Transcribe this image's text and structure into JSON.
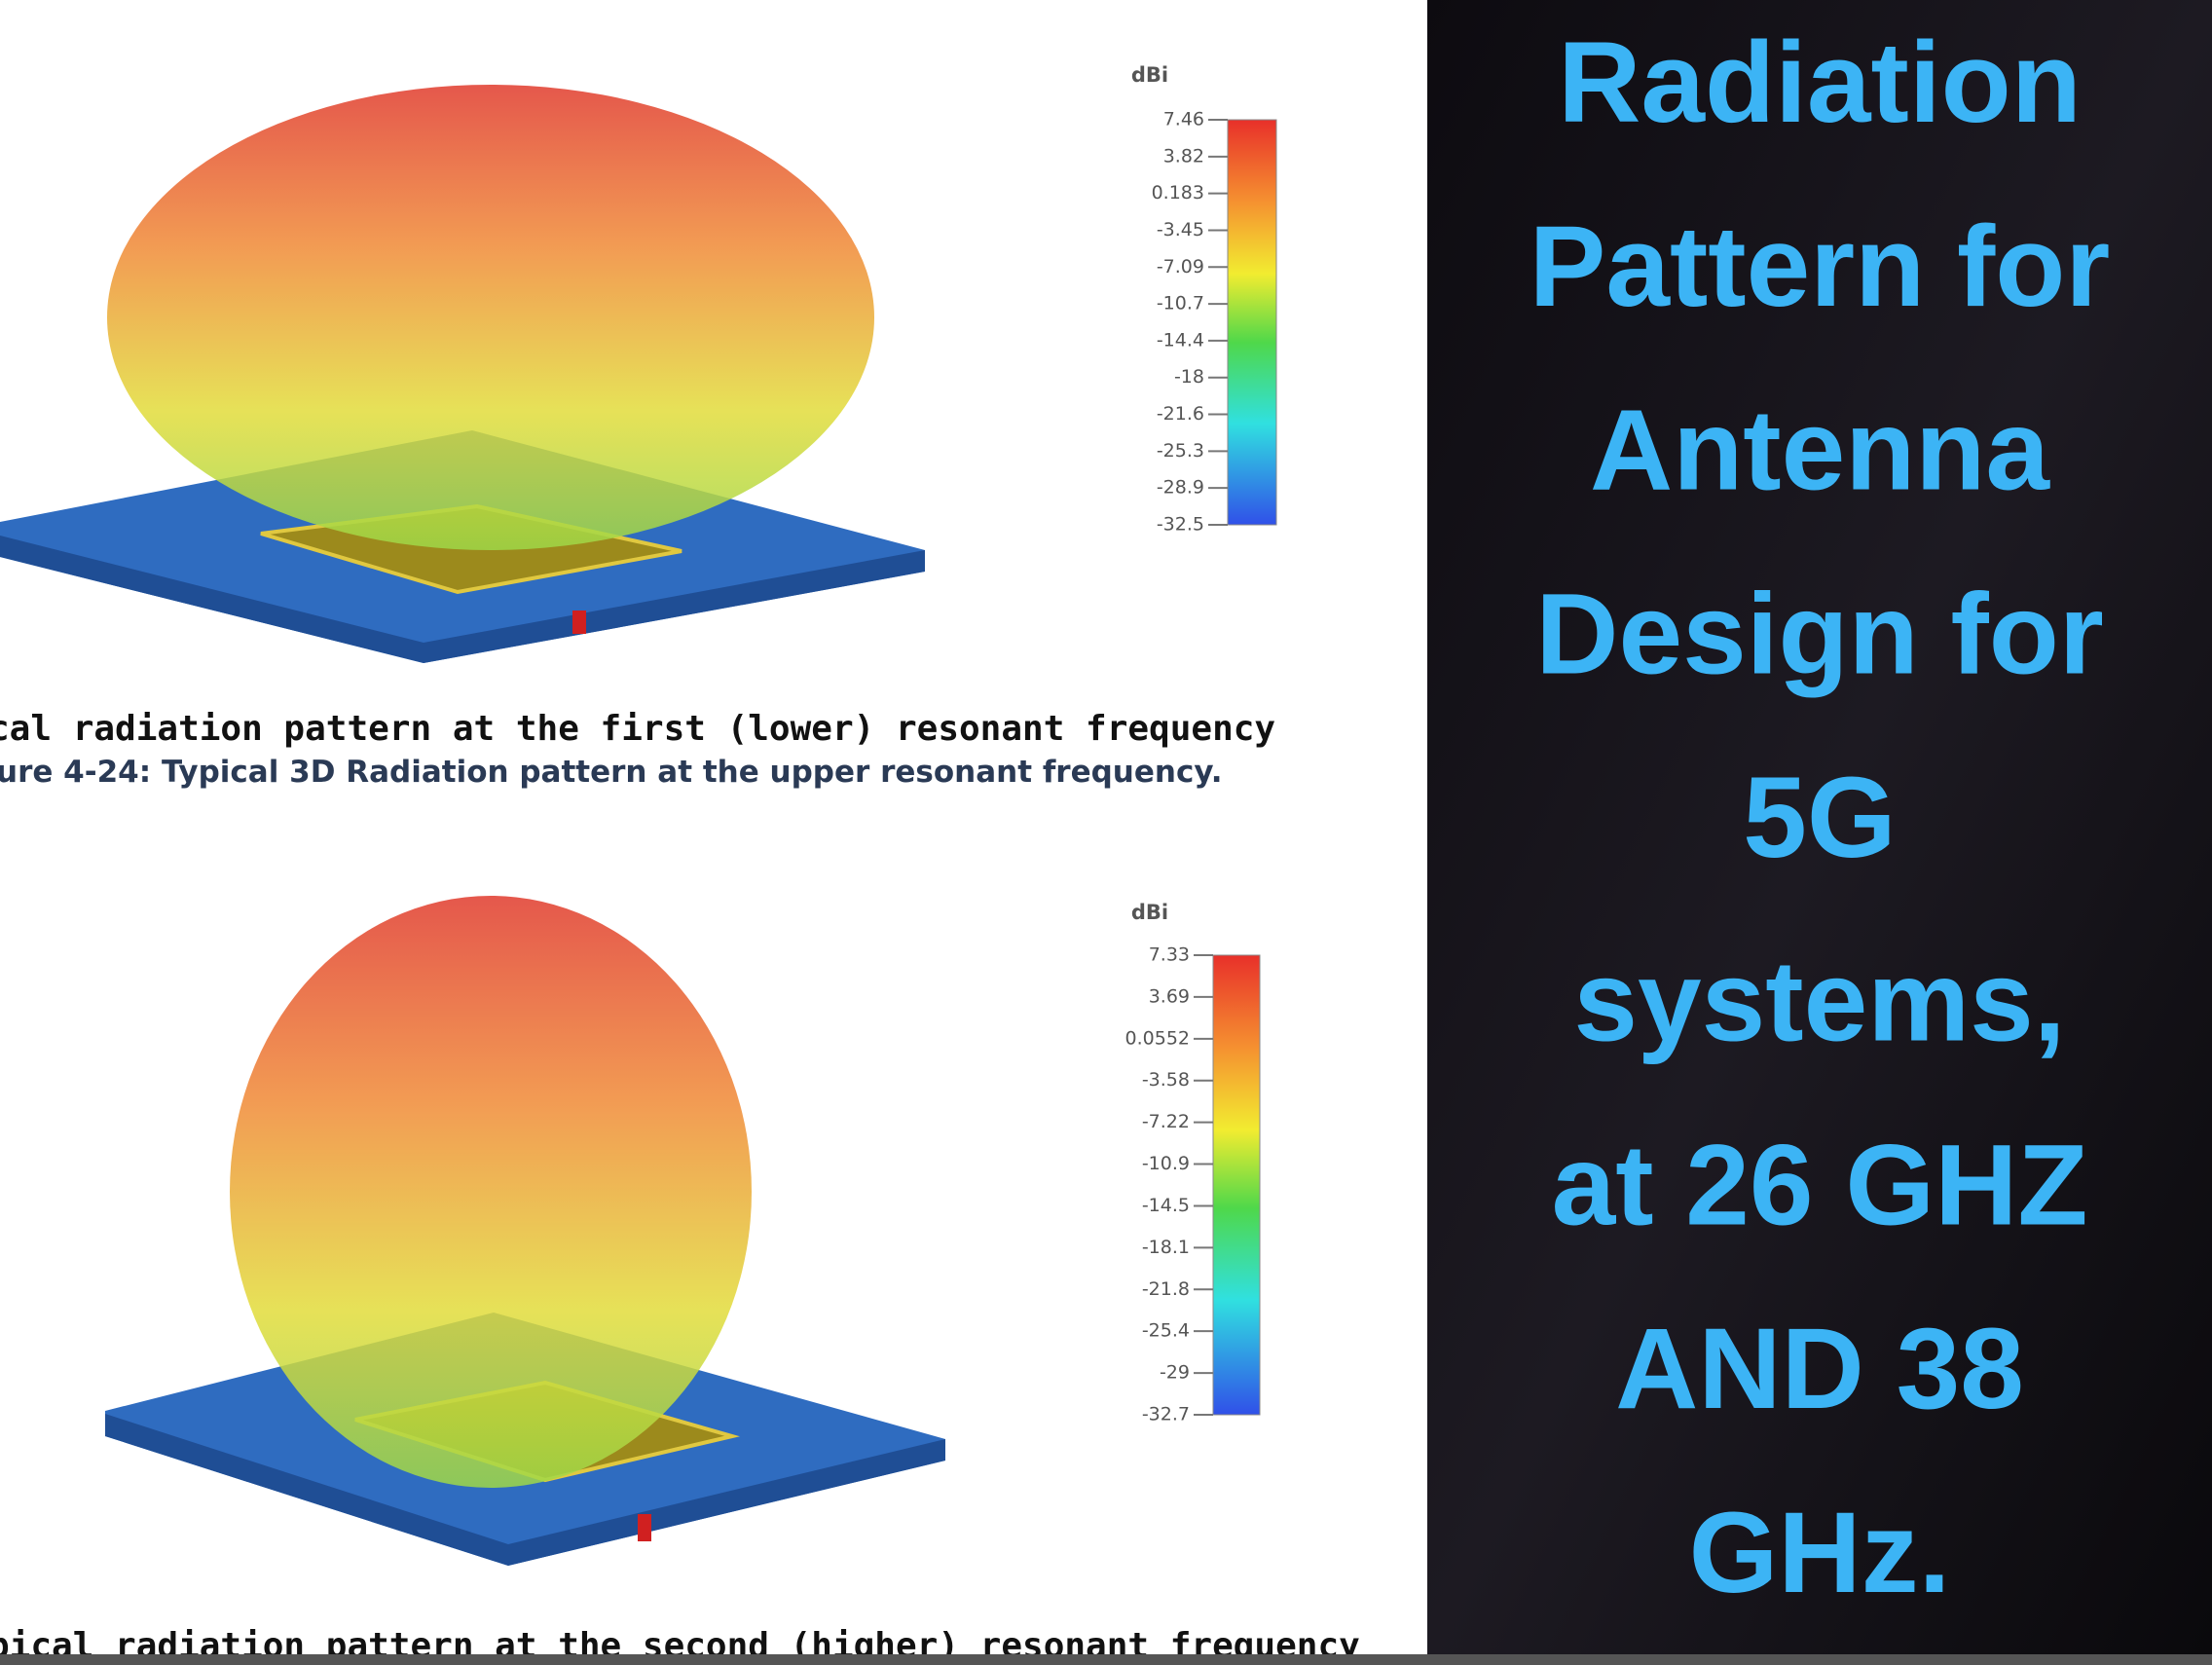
{
  "figures": [
    {
      "unit": "dBi",
      "ticks": [
        "7.46",
        "3.82",
        "0.183",
        "-3.45",
        "-7.09",
        "-10.7",
        "-14.4",
        "-18",
        "-21.6",
        "-25.3",
        "-28.9",
        "-32.5"
      ]
    },
    {
      "unit": "dBi",
      "ticks": [
        "7.33",
        "3.69",
        "0.0552",
        "-3.58",
        "-7.22",
        "-10.9",
        "-14.5",
        "-18.1",
        "-21.8",
        "-25.4",
        "-29",
        "-32.7"
      ]
    }
  ],
  "captions": [
    "cal radiation pattern at the first (lower) resonant frequency",
    "ure 4-24: Typical 3D Radiation pattern at the upper resonant frequency.",
    "pical radiation pattern at the second (higher) resonant frequency"
  ],
  "title": [
    "Radiation",
    "Pattern for",
    "Antenna",
    "Design for",
    "5G",
    "systems,",
    "at 26 GHZ",
    "AND 38",
    "GHz."
  ]
}
